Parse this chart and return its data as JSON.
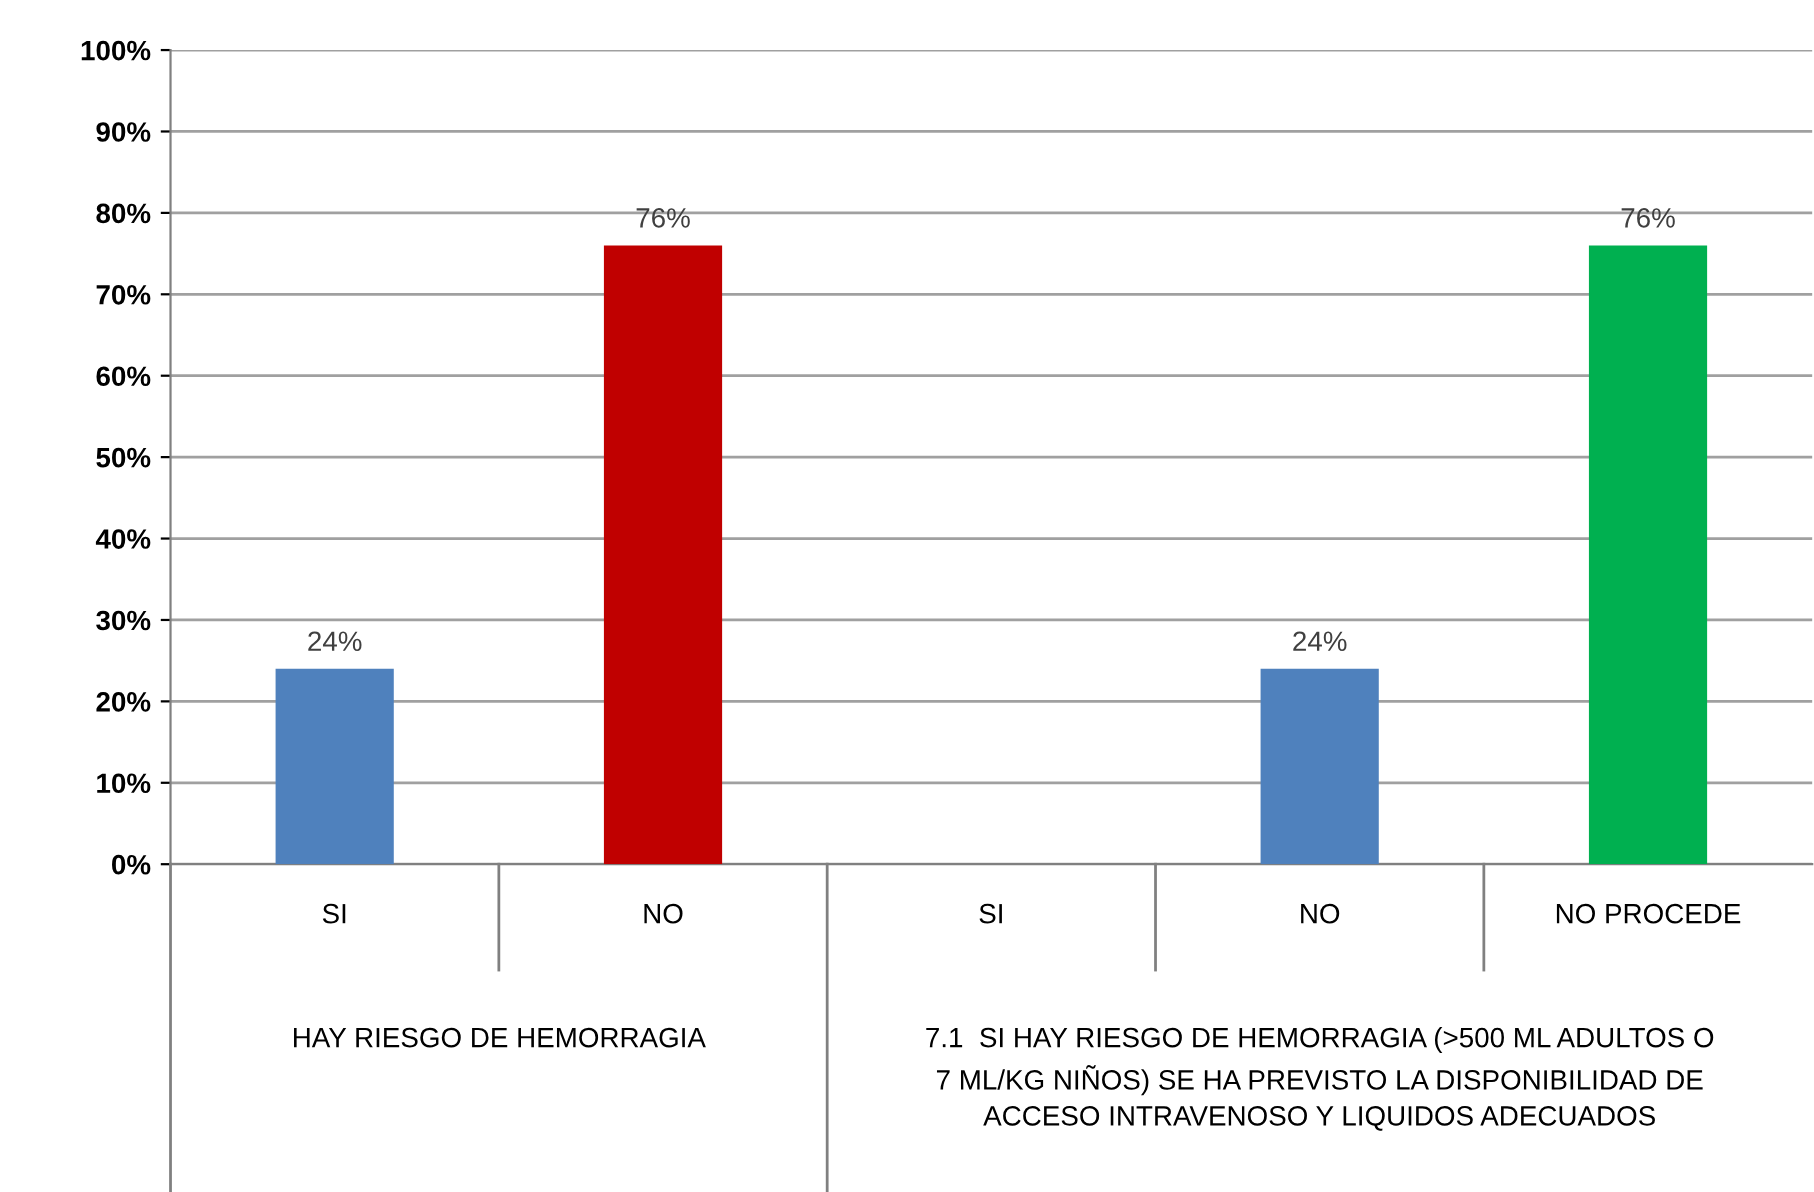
{
  "chart_data": {
    "type": "bar",
    "categories": [
      "SI",
      "NO",
      "SI",
      "NO",
      "NO PROCEDE"
    ],
    "values": [
      24,
      76,
      null,
      24,
      76
    ],
    "colors": [
      "#4f81bd",
      "#c00000",
      "#4f81bd",
      "#4f81bd",
      "#00b050"
    ],
    "value_labels": [
      "24%",
      "76%",
      null,
      "24%",
      "76%"
    ],
    "ylim": [
      0,
      100
    ],
    "yticks": [
      {
        "value": 0,
        "label": "0%"
      },
      {
        "value": 10,
        "label": "10%"
      },
      {
        "value": 20,
        "label": "20%"
      },
      {
        "value": 30,
        "label": "30%"
      },
      {
        "value": 40,
        "label": "40%"
      },
      {
        "value": 50,
        "label": "50%"
      },
      {
        "value": 60,
        "label": "60%"
      },
      {
        "value": 70,
        "label": "70%"
      },
      {
        "value": 80,
        "label": "80%"
      },
      {
        "value": 90,
        "label": "90%"
      },
      {
        "value": 100,
        "label": "100%"
      }
    ],
    "grid": "y",
    "annotations": [
      "HAY RIESGO DE HEMORRAGIA",
      "7.1  SI HAY RIESGO DE HEMORRAGIA (>500 ML ADULTOS O\n7 ML/KG NIÑOS) SE HA PREVISTO LA DISPONIBILIDAD DE\nACCESO INTRAVENOSO Y LIQUIDOS ADECUADOS"
    ]
  }
}
